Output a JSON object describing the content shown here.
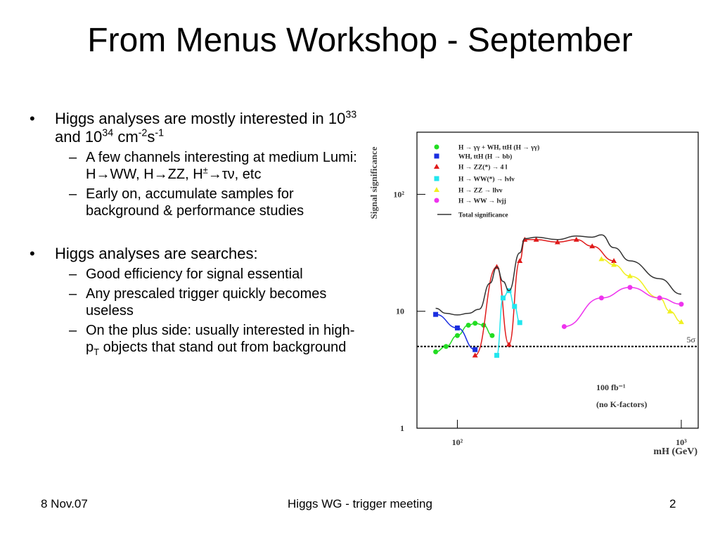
{
  "title": "From Menus Workshop - September",
  "bullets": [
    {
      "runs": [
        {
          "text": "Higgs analyses are mostly interested in 10"
        },
        {
          "sup": "33"
        },
        {
          "text": " and 10"
        },
        {
          "sup": "34"
        },
        {
          "text": " cm"
        },
        {
          "sup": "-2"
        },
        {
          "text": "s"
        },
        {
          "sup": "-1"
        }
      ],
      "subs": [
        {
          "runs": [
            {
              "text": "A few channels interesting at medium Lumi: H→WW, H→ZZ, H"
            },
            {
              "sup": "±"
            },
            {
              "text": "→τν, etc"
            }
          ]
        },
        {
          "runs": [
            {
              "text": "Early on, accumulate samples for background & performance studies"
            }
          ]
        }
      ]
    },
    {
      "runs": [
        {
          "text": "Higgs analyses are searches:"
        }
      ],
      "subs": [
        {
          "runs": [
            {
              "text": "Good efficiency for signal essential"
            }
          ]
        },
        {
          "runs": [
            {
              "text": "Any prescaled trigger quickly becomes useless"
            }
          ]
        },
        {
          "runs": [
            {
              "text": "On the plus side: usually interested in high-p"
            },
            {
              "sub": "T"
            },
            {
              "text": " objects that stand out from background"
            }
          ]
        }
      ]
    }
  ],
  "footer": {
    "left": "8 Nov.07",
    "center": "Higgs WG - trigger meeting",
    "right": "2"
  },
  "chart_data": {
    "type": "line",
    "y_label": "Signal significance",
    "x_label": "mH (GeV)",
    "log_x": true,
    "log_y": true,
    "xlim": [
      66,
      1190
    ],
    "ylim": [
      1,
      340
    ],
    "xticks": [
      {
        "value": 100,
        "label": "10²"
      },
      {
        "value": 1000,
        "label": "10³"
      }
    ],
    "yticks": [
      1,
      10,
      {
        "value": 100,
        "label": "10²"
      }
    ],
    "threshold": {
      "value": 5,
      "label": "5σ"
    },
    "annotations": [
      "100 fb⁻¹",
      "(no K-factors)"
    ],
    "series": [
      {
        "name": "H → γγ  +  WH, ttH (H → γγ)",
        "color": "#22dd22",
        "marker": "circle",
        "x": [
          80,
          89,
          100,
          112,
          120,
          131,
          143
        ],
        "values": [
          4.5,
          5.0,
          6.2,
          7.6,
          7.9,
          7.6,
          6.2
        ]
      },
      {
        "name": "WH, ttH (H → bb)",
        "color": "#1a2ee0",
        "marker": "square",
        "x": [
          80,
          100,
          120
        ],
        "values": [
          9.4,
          7.2,
          4.7
        ]
      },
      {
        "name": "H → ZZ(*) → 4 l",
        "color": "#e01a1a",
        "marker": "triangle",
        "x": [
          120,
          150,
          170,
          190,
          200,
          225,
          280,
          340,
          400,
          500
        ],
        "values": [
          4.2,
          24,
          5.2,
          27,
          41,
          41,
          39,
          41,
          36,
          27
        ]
      },
      {
        "name": "H → WW(*) → lνlν",
        "color": "#22e6ee",
        "marker": "square",
        "x": [
          150,
          160,
          170,
          180,
          190
        ],
        "values": [
          4.2,
          13,
          15,
          11,
          8.0
        ]
      },
      {
        "name": "H → ZZ → llνν",
        "color": "#f0f020",
        "marker": "triangle",
        "x": [
          440,
          500,
          590,
          800,
          890,
          1000
        ],
        "values": [
          28,
          25,
          20,
          13,
          10,
          8.1
        ]
      },
      {
        "name": "H → WW → lνjj",
        "color": "#ee33ee",
        "marker": "circle",
        "x": [
          300,
          440,
          590,
          800,
          1000
        ],
        "values": [
          7.4,
          13,
          16,
          13,
          11.5
        ]
      },
      {
        "name": "Total significance",
        "color": "#333333",
        "marker": "none",
        "x": [
          80,
          89,
          100,
          112,
          125,
          140,
          150,
          160,
          170,
          190,
          200,
          225,
          280,
          340,
          400,
          440,
          500,
          590,
          800,
          1000
        ],
        "values": [
          10.6,
          9.6,
          9.3,
          9.6,
          10.4,
          17.4,
          24,
          18,
          15,
          31.6,
          41.8,
          43,
          41,
          44,
          43,
          45,
          35,
          27,
          19,
          14
        ]
      }
    ]
  }
}
